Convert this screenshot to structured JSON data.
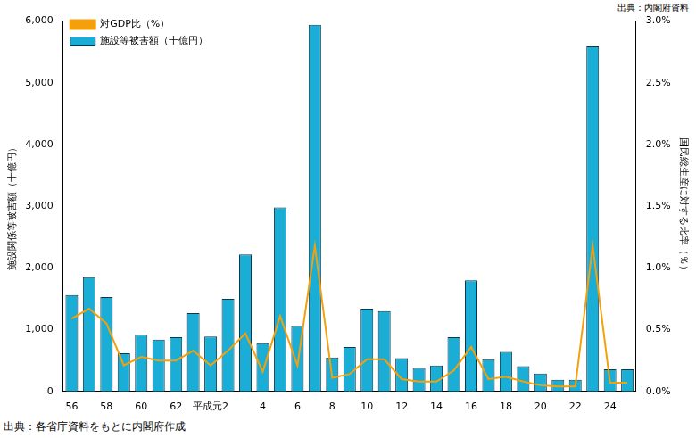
{
  "chart_data": {
    "type": "bar",
    "categories": [
      "56",
      null,
      "58",
      null,
      "60",
      null,
      "62",
      null,
      "平成元2",
      null,
      null,
      "4",
      null,
      "6",
      null,
      "8",
      null,
      "10",
      null,
      "12",
      null,
      "14",
      null,
      "16",
      null,
      "18",
      null,
      "20",
      null,
      "22",
      null,
      "24",
      null
    ],
    "series": [
      {
        "name": "施設等被害額（十億円）",
        "type": "bar",
        "color": "#1aaed6",
        "values": [
          1560,
          1850,
          1530,
          620,
          920,
          840,
          880,
          1270,
          890,
          1500,
          2220,
          780,
          2980,
          1060,
          5940,
          550,
          720,
          1340,
          1300,
          540,
          380,
          420,
          880,
          1800,
          520,
          640,
          410,
          290,
          190,
          190,
          5590,
          360,
          360
        ]
      },
      {
        "name": "対GDP比（%）",
        "type": "line",
        "color": "#f5a00a",
        "axis": "y2",
        "marker": "none",
        "line_style": "solid",
        "values": [
          0.59,
          0.67,
          0.55,
          0.21,
          0.28,
          0.25,
          0.25,
          0.33,
          0.21,
          0.33,
          0.47,
          0.16,
          0.61,
          0.21,
          1.18,
          0.11,
          0.14,
          0.26,
          0.26,
          0.1,
          0.08,
          0.08,
          0.17,
          0.36,
          0.1,
          0.12,
          0.08,
          0.05,
          0.04,
          0.04,
          1.18,
          0.07,
          0.07
        ]
      }
    ],
    "y_label": "施設関係等被害額（十億円）",
    "y2_label": "国民総生産に対する比率（％）",
    "ylim": [
      0,
      6000
    ],
    "yticks": [
      0,
      {
        "value": 1000,
        "label": "1,000"
      },
      {
        "value": 2000,
        "label": "2,000"
      },
      {
        "value": 3000,
        "label": "3,000"
      },
      {
        "value": 4000,
        "label": "4,000"
      },
      {
        "value": 5000,
        "label": "5,000"
      },
      {
        "value": 6000,
        "label": "6,000"
      }
    ],
    "y2lim": [
      0,
      3
    ],
    "y2ticks": [
      {
        "value": 0,
        "label": "0.0%"
      },
      {
        "value": 0.5,
        "label": "0.5%"
      },
      {
        "value": 1,
        "label": "1.0%"
      },
      {
        "value": 1.5,
        "label": "1.5%"
      },
      {
        "value": 2,
        "label": "2.0%"
      },
      {
        "value": 2.5,
        "label": "2.5%"
      },
      {
        "value": 3,
        "label": "3.0%"
      }
    ],
    "annotations": [
      "出典：内閣府資料",
      "出典：各省庁資料をもとに内閣府作成"
    ],
    "legend": "upper left",
    "grid": false
  }
}
